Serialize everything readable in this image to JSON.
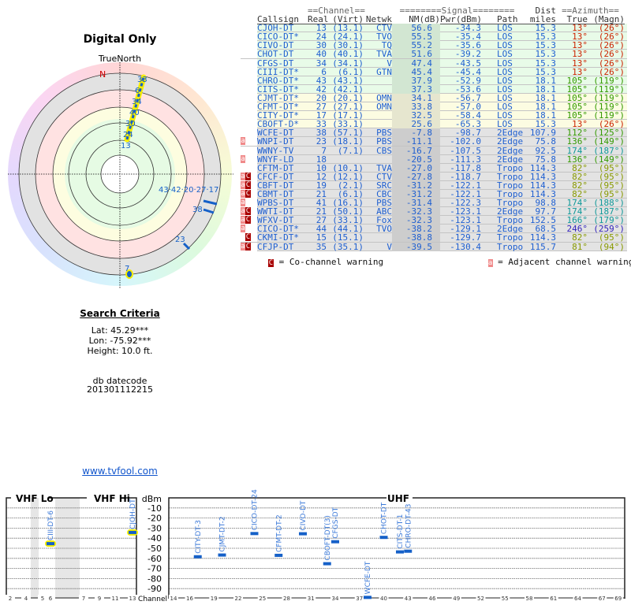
{
  "left": {
    "title": "Digital Only",
    "north_label": "TrueNorth",
    "north_marker": "N",
    "search_title": "Search Criteria",
    "lat": "Lat: 45.29***",
    "lon": "Lon: -75.92***",
    "height": "Height: 10.0 ft.",
    "db_label": "db datecode",
    "db_code": "201301112215",
    "link": "www.tvfool.com"
  },
  "polar": {
    "labels": [
      "33",
      "6",
      "34",
      "40",
      "30",
      "24",
      "13",
      "43·42·20·27·17",
      "38",
      "23",
      "7"
    ]
  },
  "table": {
    "group_headers": {
      "channel": "==Channel==",
      "signal": "========Signal========",
      "dist": "Dist",
      "azimuth": "==Azimuth=="
    },
    "headers": [
      "Callsign",
      "Real",
      "(Virt)",
      "Netwk",
      "NM(dB)",
      "Pwr(dBm)",
      "Path",
      "miles",
      "True",
      "(Magn)"
    ],
    "rows": [
      {
        "w": "",
        "call": "CJOH-DT",
        "real": "13",
        "virt": "(13.1)",
        "net": "CTV",
        "nm": "56.6",
        "pwr": "-34.3",
        "path": "LOS",
        "dist": "15.3",
        "true": "13°",
        "magn": "(26°)",
        "az": "#cc2200"
      },
      {
        "w": "",
        "call": "CICO-DT*",
        "real": "24",
        "virt": "(24.1)",
        "net": "TVO",
        "nm": "55.5",
        "pwr": "-35.4",
        "path": "LOS",
        "dist": "15.3",
        "true": "13°",
        "magn": "(26°)",
        "az": "#cc2200"
      },
      {
        "w": "",
        "call": "CIVO-DT",
        "real": "30",
        "virt": "(30.1)",
        "net": "TQ",
        "nm": "55.2",
        "pwr": "-35.6",
        "path": "LOS",
        "dist": "15.3",
        "true": "13°",
        "magn": "(26°)",
        "az": "#cc2200"
      },
      {
        "w": "",
        "call": "CHOT-DT",
        "real": "40",
        "virt": "(40.1)",
        "net": "TVA",
        "nm": "51.6",
        "pwr": "-39.2",
        "path": "LOS",
        "dist": "15.3",
        "true": "13°",
        "magn": "(26°)",
        "az": "#cc2200"
      },
      {
        "w": "",
        "call": "CFGS-DT",
        "real": "34",
        "virt": "(34.1)",
        "net": "V",
        "nm": "47.4",
        "pwr": "-43.5",
        "path": "LOS",
        "dist": "15.3",
        "true": "13°",
        "magn": "(26°)",
        "az": "#cc2200"
      },
      {
        "w": "",
        "call": "CIII-DT*",
        "real": "6",
        "virt": "(6.1)",
        "net": "GTN",
        "nm": "45.4",
        "pwr": "-45.4",
        "path": "LOS",
        "dist": "15.3",
        "true": "13°",
        "magn": "(26°)",
        "az": "#cc2200"
      },
      {
        "w": "",
        "call": "CHRO-DT*",
        "real": "43",
        "virt": "(43.1)",
        "net": "",
        "nm": "37.9",
        "pwr": "-52.9",
        "path": "LOS",
        "dist": "18.1",
        "true": "105°",
        "magn": "(119°)",
        "az": "#339900"
      },
      {
        "w": "",
        "call": "CITS-DT*",
        "real": "42",
        "virt": "(42.1)",
        "net": "",
        "nm": "37.3",
        "pwr": "-53.6",
        "path": "LOS",
        "dist": "18.1",
        "true": "105°",
        "magn": "(119°)",
        "az": "#339900"
      },
      {
        "w": "",
        "call": "CJMT-DT*",
        "real": "20",
        "virt": "(20.1)",
        "net": "OMN",
        "nm": "34.1",
        "pwr": "-56.7",
        "path": "LOS",
        "dist": "18.1",
        "true": "105°",
        "magn": "(119°)",
        "az": "#339900"
      },
      {
        "w": "",
        "call": "CFMT-DT*",
        "real": "27",
        "virt": "(27.1)",
        "net": "OMN",
        "nm": "33.8",
        "pwr": "-57.0",
        "path": "LOS",
        "dist": "18.1",
        "true": "105°",
        "magn": "(119°)",
        "az": "#339900"
      },
      {
        "w": "",
        "call": "CITY-DT*",
        "real": "17",
        "virt": "(17.1)",
        "net": "",
        "nm": "32.5",
        "pwr": "-58.4",
        "path": "LOS",
        "dist": "18.1",
        "true": "105°",
        "magn": "(119°)",
        "az": "#339900"
      },
      {
        "w": "",
        "call": "CBOFT-D*",
        "real": "33",
        "virt": "(33.1)",
        "net": "",
        "nm": "25.6",
        "pwr": "-65.3",
        "path": "LOS",
        "dist": "15.3",
        "true": "13°",
        "magn": "(26°)",
        "az": "#cc2200"
      },
      {
        "w": "",
        "call": "WCFE-DT",
        "real": "38",
        "virt": "(57.1)",
        "net": "PBS",
        "nm": "-7.8",
        "pwr": "-98.7",
        "path": "2Edge",
        "dist": "107.9",
        "true": "112°",
        "magn": "(125°)",
        "az": "#339900"
      },
      {
        "w": "a",
        "call": "WNPI-DT",
        "real": "23",
        "virt": "(18.1)",
        "net": "PBS",
        "nm": "-11.1",
        "pwr": "-102.0",
        "path": "2Edge",
        "dist": "75.8",
        "true": "136°",
        "magn": "(149°)",
        "az": "#339900"
      },
      {
        "w": "",
        "call": "WWNY-TV",
        "real": "7",
        "virt": "(7.1)",
        "net": "CBS",
        "nm": "-16.7",
        "pwr": "-107.5",
        "path": "2Edge",
        "dist": "92.5",
        "true": "174°",
        "magn": "(187°)",
        "az": "#119999"
      },
      {
        "w": "a",
        "call": "WNYF-LD",
        "real": "18",
        "virt": "",
        "net": "",
        "nm": "-20.5",
        "pwr": "-111.3",
        "path": "2Edge",
        "dist": "75.8",
        "true": "136°",
        "magn": "(149°)",
        "az": "#339900"
      },
      {
        "w": "",
        "call": "CFTM-DT",
        "real": "10",
        "virt": "(10.1)",
        "net": "TVA",
        "nm": "-27.0",
        "pwr": "-117.8",
        "path": "Tropo",
        "dist": "114.3",
        "true": "82°",
        "magn": "(95°)",
        "az": "#889900"
      },
      {
        "w": "aC",
        "call": "CFCF-DT",
        "real": "12",
        "virt": "(12.1)",
        "net": "CTV",
        "nm": "-27.8",
        "pwr": "-118.7",
        "path": "Tropo",
        "dist": "114.3",
        "true": "82°",
        "magn": "(95°)",
        "az": "#889900"
      },
      {
        "w": "aC",
        "call": "CBFT-DT",
        "real": "19",
        "virt": "(2.1)",
        "net": "SRC",
        "nm": "-31.2",
        "pwr": "-122.1",
        "path": "Tropo",
        "dist": "114.3",
        "true": "82°",
        "magn": "(95°)",
        "az": "#889900"
      },
      {
        "w": "aC",
        "call": "CBMT-DT",
        "real": "21",
        "virt": "(6.1)",
        "net": "CBC",
        "nm": "-31.2",
        "pwr": "-122.1",
        "path": "Tropo",
        "dist": "114.3",
        "true": "82°",
        "magn": "(95°)",
        "az": "#889900"
      },
      {
        "w": "a",
        "call": "WPBS-DT",
        "real": "41",
        "virt": "(16.1)",
        "net": "PBS",
        "nm": "-31.4",
        "pwr": "-122.3",
        "path": "Tropo",
        "dist": "98.8",
        "true": "174°",
        "magn": "(188°)",
        "az": "#119999"
      },
      {
        "w": "aC",
        "call": "WWTI-DT",
        "real": "21",
        "virt": "(50.1)",
        "net": "ABC",
        "nm": "-32.3",
        "pwr": "-123.1",
        "path": "2Edge",
        "dist": "97.7",
        "true": "174°",
        "magn": "(187°)",
        "az": "#119999"
      },
      {
        "w": "aC",
        "call": "WFXV-DT",
        "real": "27",
        "virt": "(33.1)",
        "net": "Fox",
        "nm": "-32.3",
        "pwr": "-123.1",
        "path": "Tropo",
        "dist": "152.5",
        "true": "166°",
        "magn": "(179°)",
        "az": "#119999"
      },
      {
        "w": "a",
        "call": "CICO-DT*",
        "real": "44",
        "virt": "(44.1)",
        "net": "TVO",
        "nm": "-38.2",
        "pwr": "-129.1",
        "path": "2Edge",
        "dist": "68.5",
        "true": "246°",
        "magn": "(259°)",
        "az": "#3322bb"
      },
      {
        "w": "C",
        "call": "CKMI-DT*",
        "real": "15",
        "virt": "(15.1)",
        "net": "",
        "nm": "-38.8",
        "pwr": "-129.7",
        "path": "Tropo",
        "dist": "114.3",
        "true": "82°",
        "magn": "(95°)",
        "az": "#889900"
      },
      {
        "w": "aC",
        "call": "CFJP-DT",
        "real": "35",
        "virt": "(35.1)",
        "net": "V",
        "nm": "-39.5",
        "pwr": "-130.4",
        "path": "Tropo",
        "dist": "115.7",
        "true": "81°",
        "magn": "(94°)",
        "az": "#889900"
      }
    ],
    "legend": {
      "co_icon": "C",
      "co_text": " = Co-channel warning",
      "adj_icon": "a",
      "adj_text": " = Adjacent channel warning"
    }
  },
  "chart_data": {
    "type": "scatter",
    "ylabel": "dBm",
    "xlabel": "Channel",
    "ylim": [
      -100,
      0
    ],
    "yticks": [
      "-10",
      "-20",
      "-30",
      "-40",
      "-50",
      "-60",
      "-70",
      "-80",
      "-90"
    ],
    "bands": [
      "VHF Lo",
      "VHF Hi",
      "UHF"
    ],
    "vhf_ticks": [
      "2",
      "4",
      "5",
      "6",
      "7",
      "9",
      "11",
      "13"
    ],
    "uhf_ticks": [
      "14",
      "16",
      "19",
      "22",
      "25",
      "28",
      "31",
      "34",
      "37",
      "40",
      "43",
      "46",
      "49",
      "52",
      "55",
      "58",
      "61",
      "64",
      "67",
      "69"
    ],
    "grid": true,
    "points": [
      {
        "label": "CIII-DT-6",
        "channel": 6,
        "dbm": -45.4,
        "highlight": true
      },
      {
        "label": "CJOH-DT",
        "channel": 13,
        "dbm": -34.3,
        "highlight": true
      },
      {
        "label": "CITY-DT-3",
        "channel": 17,
        "dbm": -58.4
      },
      {
        "label": "CJMT-DT-2",
        "channel": 20,
        "dbm": -56.7
      },
      {
        "label": "CICO-DT-24",
        "channel": 24,
        "dbm": -35.4
      },
      {
        "label": "CFMT-DT-2",
        "channel": 27,
        "dbm": -57.0
      },
      {
        "label": "CIVO-DT",
        "channel": 30,
        "dbm": -35.6
      },
      {
        "label": "CBOFT-DT(3)",
        "channel": 33,
        "dbm": -65.3
      },
      {
        "label": "CFGS-DT",
        "channel": 34,
        "dbm": -43.5
      },
      {
        "label": "WCFE-DT",
        "channel": 38,
        "dbm": -98.7
      },
      {
        "label": "CHOT-DT",
        "channel": 40,
        "dbm": -39.2
      },
      {
        "label": "CITS-DT-1",
        "channel": 42,
        "dbm": -53.6
      },
      {
        "label": "CHRO-DT-43",
        "channel": 43,
        "dbm": -52.9
      }
    ]
  }
}
